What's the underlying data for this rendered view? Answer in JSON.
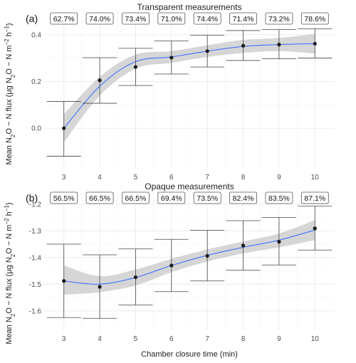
{
  "chart_data": [
    {
      "type": "scatter",
      "panel_label": "(a)",
      "title": "Transparent measurements",
      "x": [
        3,
        4,
        5,
        6,
        7,
        8,
        9,
        10
      ],
      "y": [
        0.0,
        0.205,
        0.262,
        0.302,
        0.33,
        0.353,
        0.358,
        0.362
      ],
      "err_low": [
        -0.12,
        0.107,
        0.183,
        0.232,
        0.262,
        0.29,
        0.297,
        0.3
      ],
      "err_high": [
        0.115,
        0.302,
        0.342,
        0.374,
        0.398,
        0.418,
        0.422,
        0.425
      ],
      "trend": [
        0.0,
        0.18,
        0.285,
        0.305,
        0.33,
        0.35,
        0.358,
        0.362
      ],
      "ribbon_low": [
        -0.06,
        0.14,
        0.255,
        0.28,
        0.305,
        0.322,
        0.33,
        0.32
      ],
      "ribbon_high": [
        0.06,
        0.22,
        0.315,
        0.33,
        0.355,
        0.378,
        0.386,
        0.404
      ],
      "percent_labels": [
        "62.7%",
        "74.0%",
        "73.4%",
        "71.0%",
        "74.4%",
        "71.4%",
        "73.2%",
        "78.6%"
      ],
      "xlim": [
        2.45,
        10.55
      ],
      "ylim": [
        -0.17,
        0.5
      ],
      "yticks": [
        0.0,
        0.2,
        0.4
      ],
      "ytick_labels": [
        "0.0",
        "0.2",
        "0.4"
      ],
      "xticks": [
        3,
        4,
        5,
        6,
        7,
        8,
        9,
        10
      ],
      "xtick_labels": [
        "3",
        "4",
        "5",
        "6",
        "7",
        "8",
        "9",
        "10"
      ],
      "grid": true
    },
    {
      "type": "scatter",
      "panel_label": "(b)",
      "title": "Opaque measurements",
      "x": [
        3,
        4,
        5,
        6,
        7,
        8,
        9,
        10
      ],
      "y": [
        -1.488,
        -1.51,
        -1.474,
        -1.43,
        -1.394,
        -1.355,
        -1.341,
        -1.291
      ],
      "err_low": [
        -1.625,
        -1.628,
        -1.578,
        -1.528,
        -1.488,
        -1.448,
        -1.428,
        -1.372
      ],
      "err_high": [
        -1.35,
        -1.39,
        -1.368,
        -1.332,
        -1.298,
        -1.262,
        -1.25,
        -1.208
      ],
      "trend": [
        -1.488,
        -1.5,
        -1.475,
        -1.43,
        -1.392,
        -1.362,
        -1.335,
        -1.297
      ],
      "ribbon_low": [
        -1.54,
        -1.53,
        -1.505,
        -1.455,
        -1.415,
        -1.385,
        -1.362,
        -1.335
      ],
      "ribbon_high": [
        -1.43,
        -1.47,
        -1.445,
        -1.405,
        -1.37,
        -1.34,
        -1.31,
        -1.26
      ],
      "percent_labels": [
        "56.5%",
        "66.5%",
        "66.5%",
        "69.4%",
        "73.5%",
        "82.4%",
        "83.5%",
        "87.1%"
      ],
      "xlim": [
        2.45,
        10.55
      ],
      "ylim": [
        -1.67,
        -1.15
      ],
      "yticks": [
        -1.6,
        -1.5,
        -1.4,
        -1.3,
        -1.2
      ],
      "ytick_labels": [
        "-1.6",
        "-1.5",
        "-1.4",
        "-1.3",
        "-1.2"
      ],
      "xticks": [
        3,
        4,
        5,
        6,
        7,
        8,
        9,
        10
      ],
      "xtick_labels": [
        "3",
        "4",
        "5",
        "6",
        "7",
        "8",
        "9",
        "10"
      ],
      "grid": true
    }
  ],
  "shared": {
    "xlabel": "Chamber closure time (min)",
    "ylabel_prefix": "Mean N",
    "ylabel_sub": "2",
    "ylabel_mid": "O − N flux (μg N",
    "ylabel_sub2": "2",
    "ylabel_mid2": "O − N m",
    "ylabel_sup": "−2",
    "ylabel_mid3": " h",
    "ylabel_sup2": "−1",
    "ylabel_end": ")"
  },
  "colors": {
    "trend": "#3366ff",
    "ribbon": "#c8c8c8",
    "points": "#1a1a1a"
  }
}
